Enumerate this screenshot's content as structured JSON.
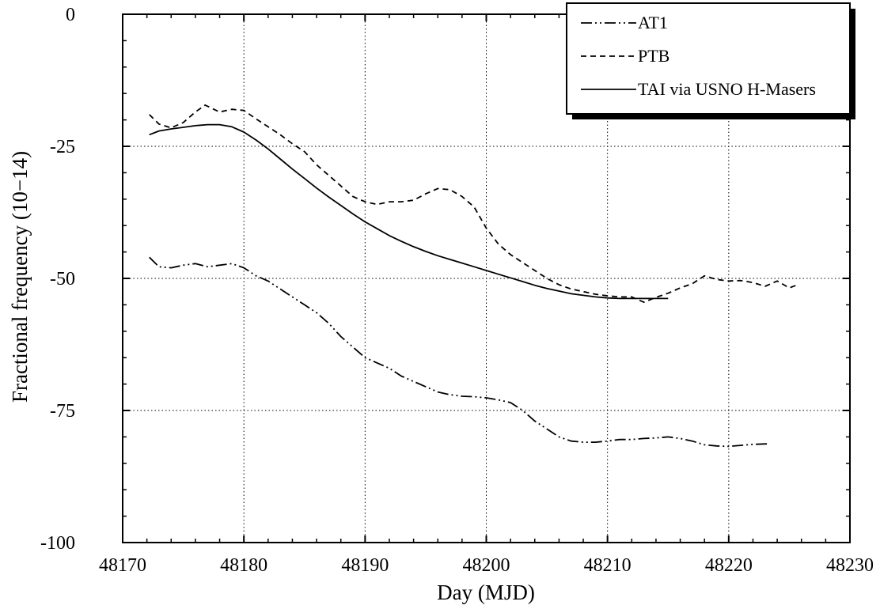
{
  "chart_data": {
    "type": "line",
    "title": "",
    "xlabel": "Day (MJD)",
    "ylabel": "Fractional frequency (10−14)",
    "xlim": [
      48170,
      48230
    ],
    "ylim": [
      -100,
      0
    ],
    "xticks": [
      48170,
      48180,
      48190,
      48200,
      48210,
      48220,
      48230
    ],
    "yticks": [
      0,
      -25,
      -50,
      -75,
      -100
    ],
    "ytick_labels": [
      "0",
      "-25",
      "-50",
      "-75",
      "-100"
    ],
    "grid": "dotted",
    "legend_position": "top-right",
    "series": [
      {
        "name": "AT1",
        "style": "dash-dot-dot",
        "color": "#000000",
        "x": [
          48172.2,
          48173,
          48174,
          48175,
          48176,
          48177,
          48178,
          48179,
          48180,
          48181,
          48182,
          48183,
          48184,
          48185,
          48186,
          48187,
          48188,
          48189,
          48190,
          48191,
          48192,
          48193,
          48194,
          48195,
          48196,
          48197,
          48198,
          48199,
          48200,
          48201,
          48202,
          48203,
          48204,
          48205,
          48206,
          48207,
          48208,
          48209,
          48210,
          48211,
          48212,
          48213,
          48214,
          48215,
          48216,
          48217,
          48218,
          48219,
          48220,
          48221,
          48222,
          48223.3
        ],
        "y": [
          -46,
          -47.8,
          -48,
          -47.5,
          -47.2,
          -47.8,
          -47.5,
          -47.2,
          -48,
          -49.5,
          -50.5,
          -52,
          -53.5,
          -55,
          -56.5,
          -58.5,
          -61,
          -63,
          -65,
          -66,
          -67,
          -68.5,
          -69.5,
          -70.5,
          -71.5,
          -72,
          -72.3,
          -72.4,
          -72.6,
          -73,
          -73.5,
          -75,
          -77,
          -78.5,
          -80,
          -80.8,
          -81,
          -81,
          -80.8,
          -80.5,
          -80.5,
          -80.3,
          -80.2,
          -80,
          -80.3,
          -80.8,
          -81.5,
          -81.7,
          -81.8,
          -81.6,
          -81.4,
          -81.3
        ]
      },
      {
        "name": "PTB",
        "style": "dashed",
        "color": "#000000",
        "x": [
          48172.2,
          48173,
          48174,
          48175,
          48176,
          48176.8,
          48178,
          48179,
          48180,
          48181,
          48182,
          48183,
          48184,
          48185,
          48186,
          48187,
          48188,
          48189,
          48190,
          48191,
          48192,
          48193,
          48194,
          48195,
          48196,
          48197,
          48198,
          48199,
          48200,
          48201,
          48202,
          48203,
          48204,
          48205,
          48206,
          48207,
          48208,
          48209,
          48210,
          48211,
          48212,
          48213,
          48214,
          48215,
          48216,
          48217,
          48218,
          48219,
          48220,
          48221,
          48222,
          48223,
          48224,
          48225,
          48225.7
        ],
        "y": [
          -19,
          -20.8,
          -21.5,
          -20.5,
          -18.5,
          -17.2,
          -18.5,
          -18,
          -18.2,
          -19.8,
          -21.3,
          -22.8,
          -24.5,
          -26,
          -28.5,
          -30.5,
          -32.5,
          -34.5,
          -35.5,
          -36,
          -35.5,
          -35.5,
          -35.2,
          -34,
          -33,
          -33.2,
          -34.5,
          -36.5,
          -40.5,
          -43.5,
          -45.5,
          -47,
          -48.5,
          -50,
          -51.2,
          -52,
          -52.5,
          -53,
          -53.3,
          -53.5,
          -53.5,
          -54.5,
          -53.6,
          -52.8,
          -51.8,
          -51,
          -49.5,
          -50.2,
          -50.5,
          -50.4,
          -50.8,
          -51.5,
          -50.5,
          -51.8,
          -51.2
        ]
      },
      {
        "name": "TAI via USNO H-Masers",
        "style": "solid",
        "color": "#000000",
        "x": [
          48172.2,
          48173,
          48174,
          48175,
          48176,
          48177,
          48178,
          48179,
          48180,
          48181,
          48182,
          48183,
          48184,
          48185,
          48186,
          48187,
          48188,
          48189,
          48190,
          48191,
          48192,
          48193,
          48194,
          48195,
          48196,
          48197,
          48198,
          48199,
          48200,
          48201,
          48202,
          48203,
          48204,
          48205,
          48206,
          48207,
          48208,
          48209,
          48210,
          48211,
          48212,
          48213,
          48214,
          48215
        ],
        "y": [
          -22.8,
          -22.1,
          -21.7,
          -21.4,
          -21.1,
          -20.9,
          -20.9,
          -21.3,
          -22.3,
          -23.8,
          -25.5,
          -27.4,
          -29.3,
          -31.1,
          -32.9,
          -34.6,
          -36.2,
          -37.8,
          -39.3,
          -40.6,
          -41.9,
          -43,
          -44,
          -44.9,
          -45.7,
          -46.4,
          -47.1,
          -47.8,
          -48.5,
          -49.2,
          -49.9,
          -50.6,
          -51.3,
          -51.9,
          -52.4,
          -52.9,
          -53.2,
          -53.5,
          -53.7,
          -53.8,
          -53.8,
          -53.8,
          -53.8,
          -53.8
        ]
      }
    ]
  }
}
